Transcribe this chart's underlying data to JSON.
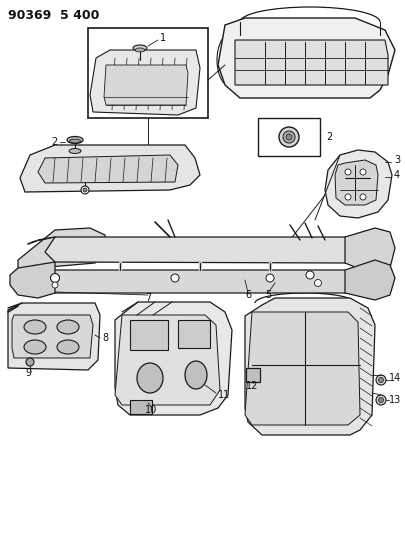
{
  "title": "90369  5 400",
  "background_color": "#ffffff",
  "line_color": "#1a1a1a",
  "text_color": "#111111",
  "figure_width": 4.06,
  "figure_height": 5.33,
  "dpi": 100
}
